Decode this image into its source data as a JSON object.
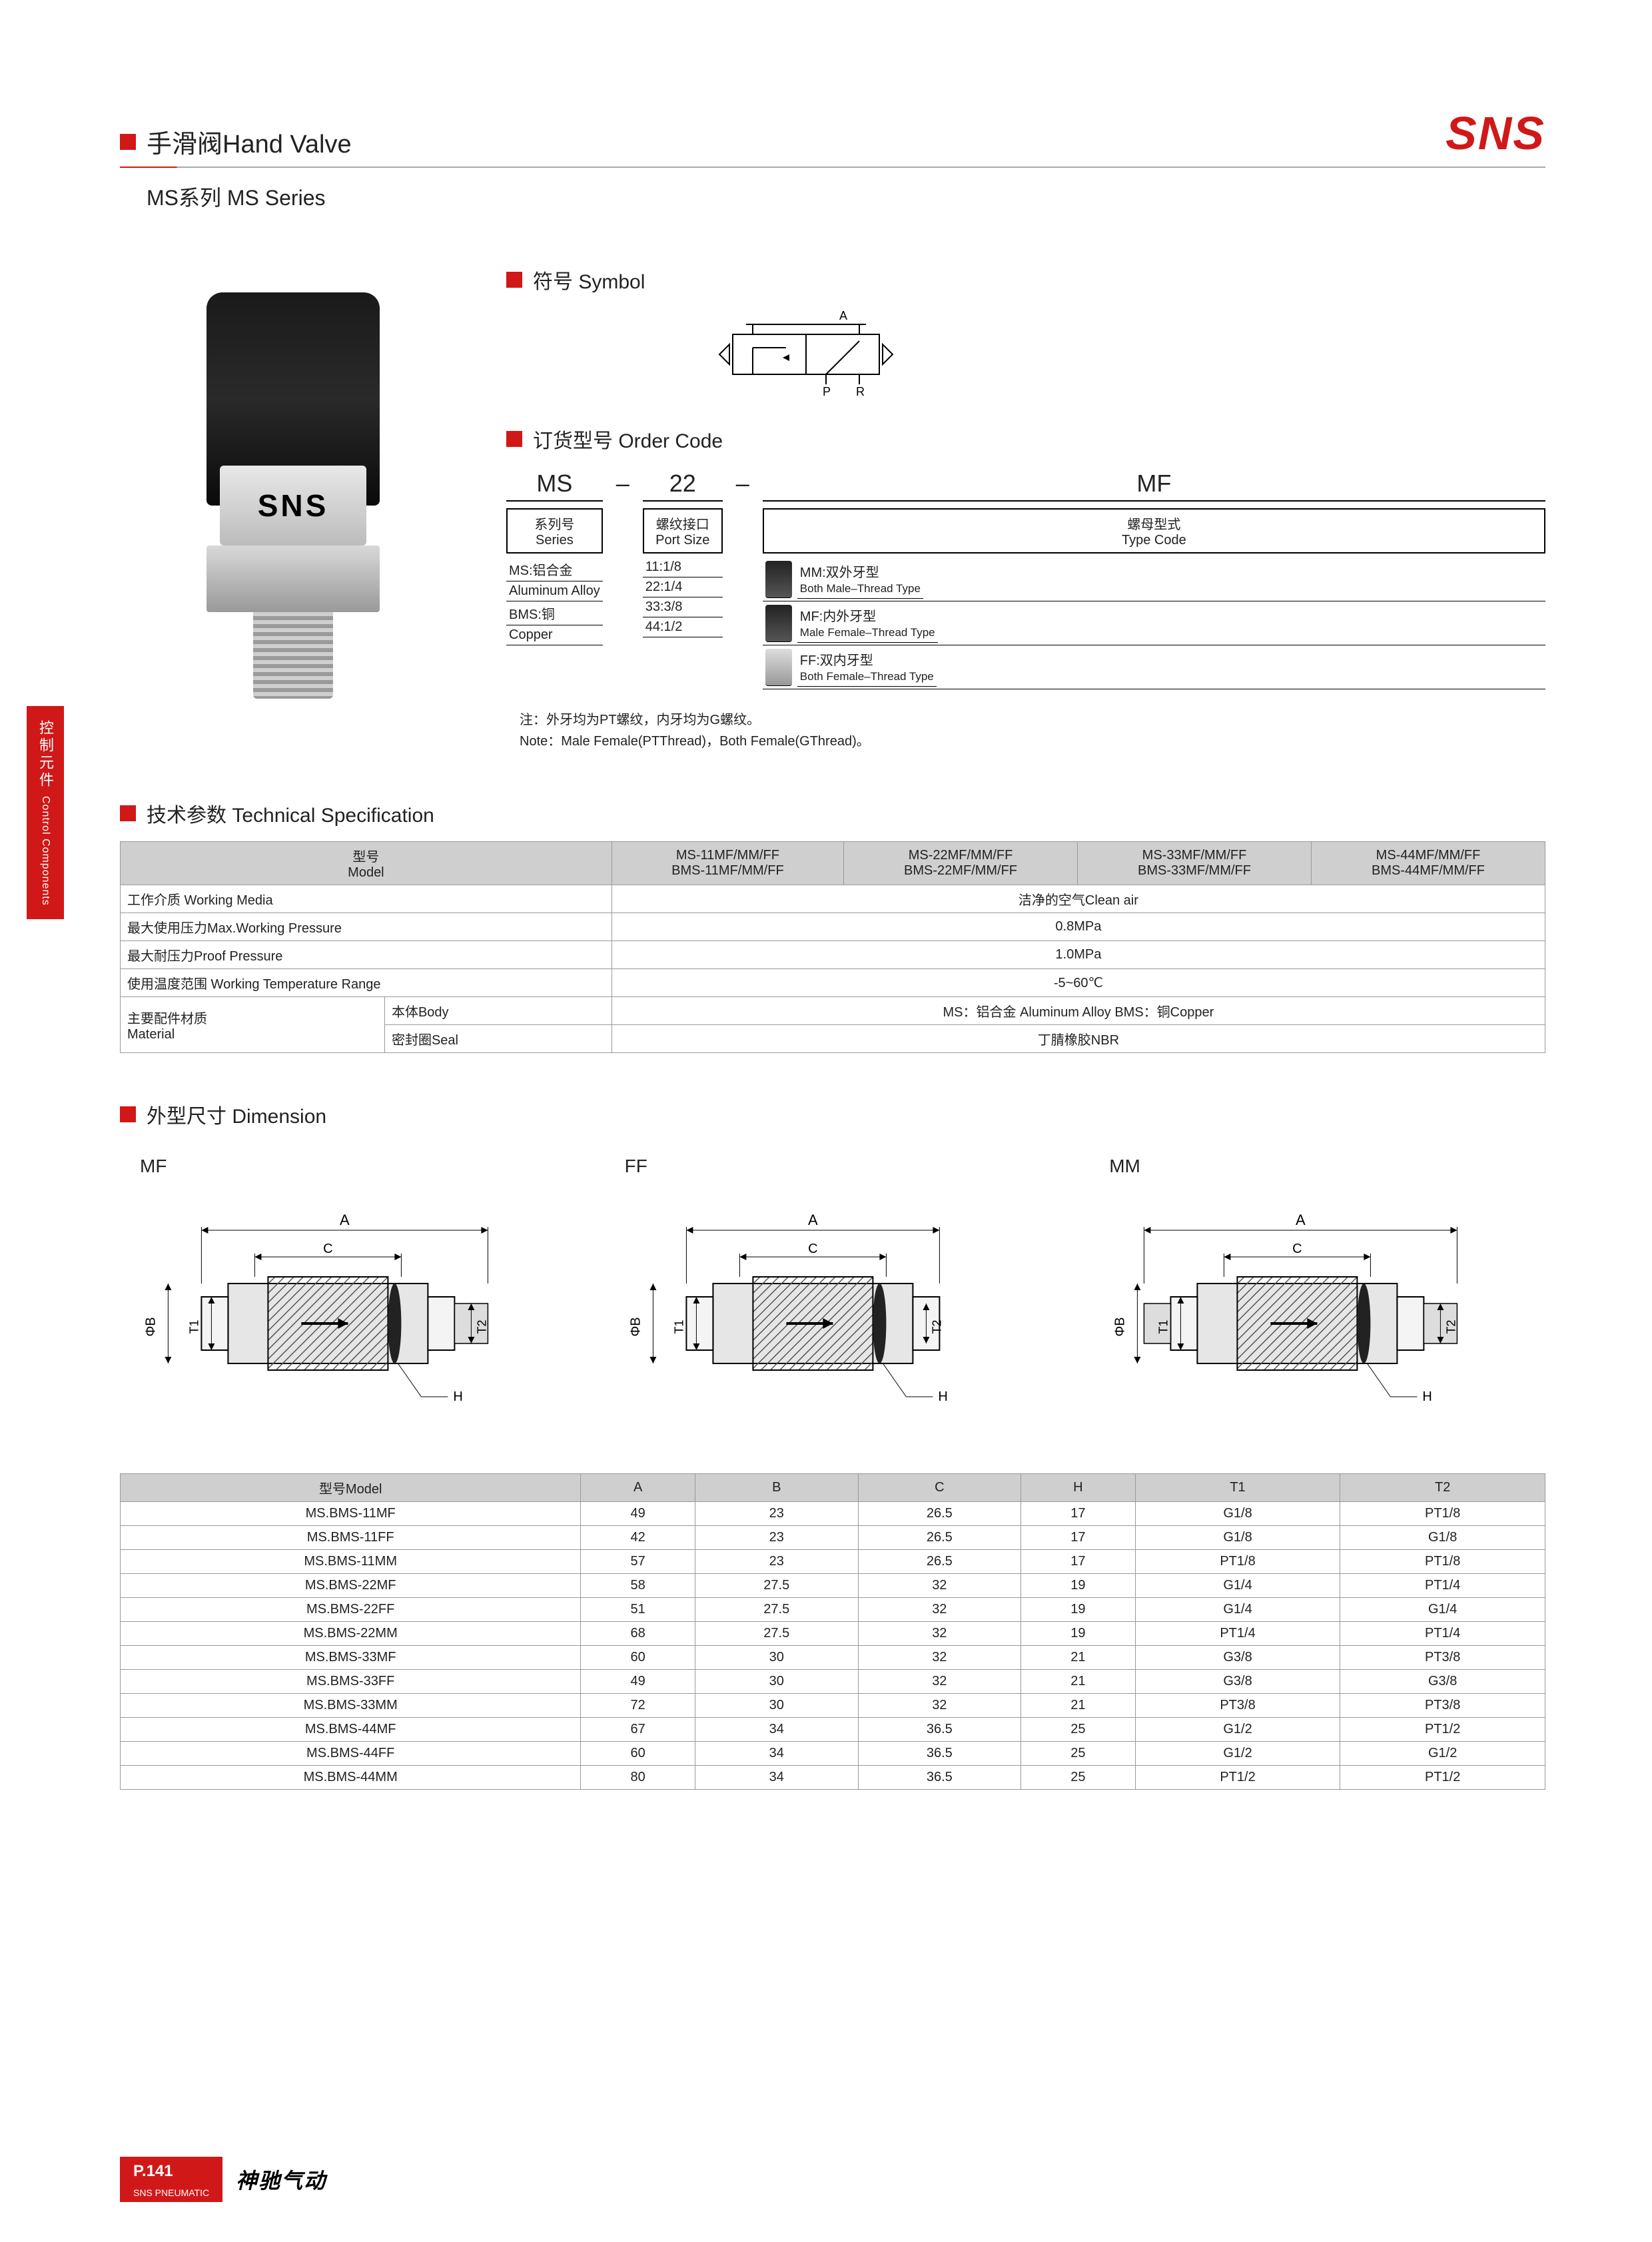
{
  "header": {
    "title": "手滑阀Hand Valve",
    "subtitle": "MS系列 MS Series",
    "logo": "SNS",
    "colors": {
      "brand_red": "#d01818",
      "rule_grey": "#aaaaaa"
    }
  },
  "sidebar_tab": {
    "cn": "控制元件",
    "en": "Control Components"
  },
  "sections": {
    "symbol": "符号 Symbol",
    "order": "订货型号 Order Code",
    "tech": "技术参数 Technical Specification",
    "dim": "外型尺寸 Dimension"
  },
  "symbol_diagram": {
    "labels": {
      "a": "A",
      "p": "P",
      "r": "R"
    }
  },
  "product_badge": "SNS",
  "order_code": {
    "big": [
      "MS",
      "–",
      "22",
      "–",
      "MF"
    ],
    "cols": [
      {
        "header_cn": "系列号",
        "header_en": "Series",
        "items": [
          "MS:铝合金",
          "  Aluminum Alloy",
          "BMS:铜",
          "  Copper"
        ]
      },
      {
        "header_cn": "螺纹接口",
        "header_en": "Port Size",
        "items": [
          "11:1/8",
          "22:1/4",
          "33:3/8",
          "44:1/2"
        ]
      },
      {
        "header_cn": "螺母型式",
        "header_en": "Type Code",
        "types": [
          {
            "code": "MM:双外牙型",
            "en": "Both Male–Thread Type"
          },
          {
            "code": "MF:内外牙型",
            "en": "Male Female–Thread Type"
          },
          {
            "code": "FF:双内牙型",
            "en": "Both Female–Thread Type"
          }
        ]
      }
    ],
    "note_cn": "注：外牙均为PT螺纹，内牙均为G螺纹。",
    "note_en": "Note：Male Female(PTThread)，Both Female(GThread)。"
  },
  "tech_spec": {
    "headers": [
      "型号\nModel",
      "MS-11MF/MM/FF\nBMS-11MF/MM/FF",
      "MS-22MF/MM/FF\nBMS-22MF/MM/FF",
      "MS-33MF/MM/FF\nBMS-33MF/MM/FF",
      "MS-44MF/MM/FF\nBMS-44MF/MM/FF"
    ],
    "rows": [
      {
        "label": "工作介质 Working Media",
        "span": "洁净的空气Clean air"
      },
      {
        "label": "最大使用压力Max.Working Pressure",
        "span": "0.8MPa"
      },
      {
        "label": "最大耐压力Proof Pressure",
        "span": "1.0MPa"
      },
      {
        "label": "使用温度范围 Working Temperature Range",
        "span": "-5~60℃"
      }
    ],
    "material": {
      "group": "主要配件材质\nMaterial",
      "body_label": "本体Body",
      "body_val": "MS：铝合金 Aluminum Alloy   BMS：铜Copper",
      "seal_label": "密封圈Seal",
      "seal_val": "丁腈橡胶NBR"
    }
  },
  "dimension": {
    "variants": [
      "MF",
      "FF",
      "MM"
    ],
    "annot": [
      "A",
      "C",
      "ΦB",
      "T1",
      "T2",
      "H"
    ],
    "headers": [
      "型号Model",
      "A",
      "B",
      "C",
      "H",
      "T1",
      "T2"
    ],
    "rows": [
      [
        "MS.BMS-11MF",
        "49",
        "23",
        "26.5",
        "17",
        "G1/8",
        "PT1/8"
      ],
      [
        "MS.BMS-11FF",
        "42",
        "23",
        "26.5",
        "17",
        "G1/8",
        "G1/8"
      ],
      [
        "MS.BMS-11MM",
        "57",
        "23",
        "26.5",
        "17",
        "PT1/8",
        "PT1/8"
      ],
      [
        "MS.BMS-22MF",
        "58",
        "27.5",
        "32",
        "19",
        "G1/4",
        "PT1/4"
      ],
      [
        "MS.BMS-22FF",
        "51",
        "27.5",
        "32",
        "19",
        "G1/4",
        "G1/4"
      ],
      [
        "MS.BMS-22MM",
        "68",
        "27.5",
        "32",
        "19",
        "PT1/4",
        "PT1/4"
      ],
      [
        "MS.BMS-33MF",
        "60",
        "30",
        "32",
        "21",
        "G3/8",
        "PT3/8"
      ],
      [
        "MS.BMS-33FF",
        "49",
        "30",
        "32",
        "21",
        "G3/8",
        "G3/8"
      ],
      [
        "MS.BMS-33MM",
        "72",
        "30",
        "32",
        "21",
        "PT3/8",
        "PT3/8"
      ],
      [
        "MS.BMS-44MF",
        "67",
        "34",
        "36.5",
        "25",
        "G1/2",
        "PT1/2"
      ],
      [
        "MS.BMS-44FF",
        "60",
        "34",
        "36.5",
        "25",
        "G1/2",
        "G1/2"
      ],
      [
        "MS.BMS-44MM",
        "80",
        "34",
        "36.5",
        "25",
        "PT1/2",
        "PT1/2"
      ]
    ]
  },
  "footer": {
    "page": "P.141",
    "sub": "SNS PNEUMATIC",
    "cn": "神驰气动"
  }
}
